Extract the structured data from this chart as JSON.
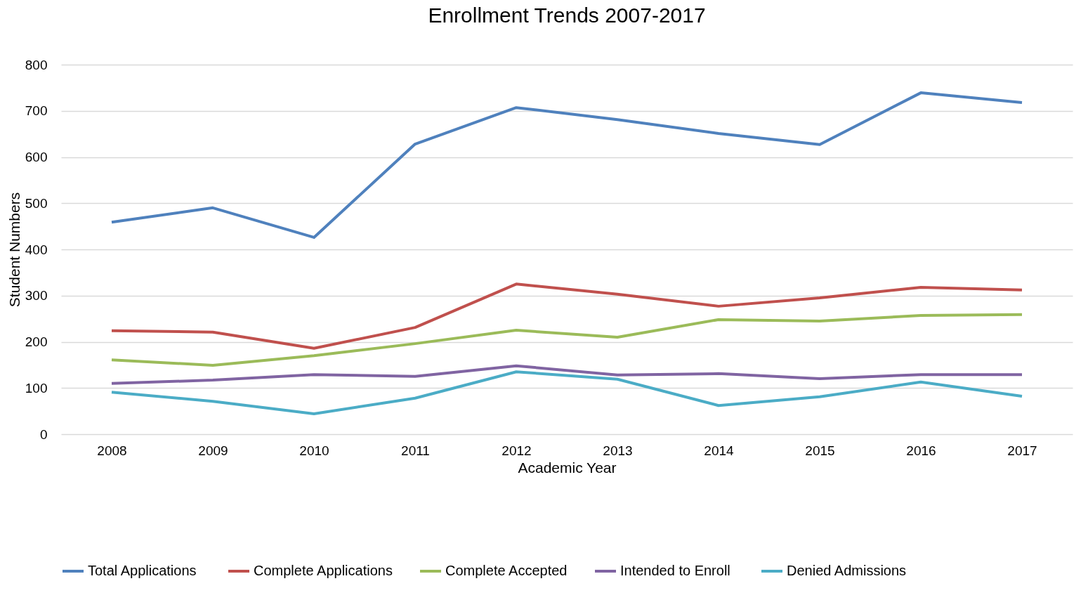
{
  "chart_data": {
    "type": "line",
    "title": "Enrollment Trends 2007-2017",
    "xlabel": "Academic Year",
    "ylabel": "Student Numbers",
    "categories": [
      "2008",
      "2009",
      "2010",
      "2011",
      "2012",
      "2013",
      "2014",
      "2015",
      "2016",
      "2017"
    ],
    "series": [
      {
        "name": "Total  Applications",
        "color": "#4f81bd",
        "values": [
          459,
          490,
          426,
          628,
          707,
          681,
          651,
          627,
          739,
          718
        ]
      },
      {
        "name": "Complete Applications",
        "color": "#c0504d",
        "values": [
          224,
          221,
          186,
          231,
          325,
          303,
          277,
          295,
          318,
          312
        ]
      },
      {
        "name": "Complete Accepted",
        "color": "#9bbb59",
        "values": [
          161,
          149,
          170,
          196,
          225,
          210,
          248,
          245,
          257,
          259
        ]
      },
      {
        "name": "Intended  to Enroll",
        "color": "#8064a2",
        "values": [
          110,
          117,
          129,
          125,
          148,
          128,
          131,
          120,
          129,
          129
        ]
      },
      {
        "name": "Denied Admissions",
        "color": "#4bacc6",
        "values": [
          91,
          71,
          44,
          78,
          135,
          119,
          62,
          81,
          113,
          82
        ]
      }
    ],
    "ylim": [
      0,
      800
    ],
    "yticks": [
      0,
      100,
      200,
      300,
      400,
      500,
      600,
      700,
      800
    ],
    "grid": "y",
    "legend": "bottom",
    "marker": "none",
    "line_style": "solid"
  }
}
